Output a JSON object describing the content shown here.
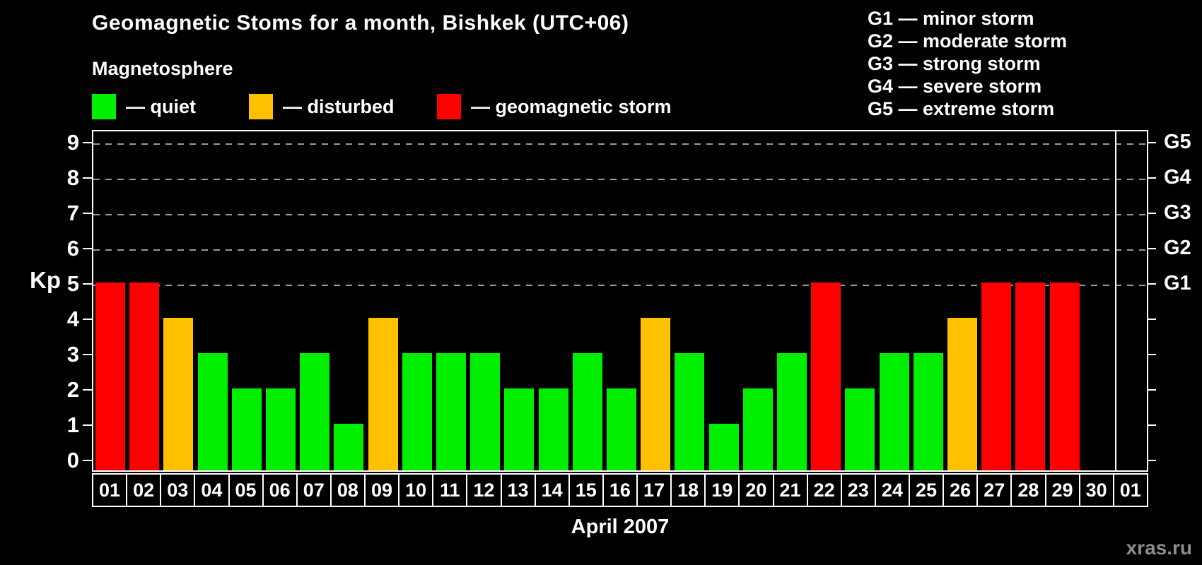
{
  "title": "Geomagnetic Stoms for a month, Bishkek (UTC+06)",
  "subtitle": "Magnetosphere",
  "legend": {
    "items": [
      {
        "name": "quiet",
        "label": "— quiet",
        "color": "#00EE00"
      },
      {
        "name": "disturbed",
        "label": "— disturbed",
        "color": "#FFC000"
      },
      {
        "name": "storm",
        "label": "— geomagnetic storm",
        "color": "#FF0000"
      }
    ]
  },
  "g_legend": {
    "lines": [
      "G1 — minor storm",
      "G2 — moderate storm",
      "G3 — strong storm",
      "G4 — severe storm",
      "G5 — extreme storm"
    ]
  },
  "watermark": "xras.ru",
  "colors": {
    "quiet": "#00EE00",
    "disturbed": "#FFC000",
    "storm": "#FF0000",
    "grid": "#9a9a9a",
    "axis": "#ffffff",
    "background": "#000000"
  },
  "chart_data": {
    "type": "bar",
    "title": "Geomagnetic Stoms for a month, Bishkek (UTC+06)",
    "xlabel": "April 2007",
    "ylabel": "Kp",
    "categories": [
      "01",
      "02",
      "03",
      "04",
      "05",
      "06",
      "07",
      "08",
      "09",
      "10",
      "11",
      "12",
      "13",
      "14",
      "15",
      "16",
      "17",
      "18",
      "19",
      "20",
      "21",
      "22",
      "23",
      "24",
      "25",
      "26",
      "27",
      "28",
      "29",
      "30",
      "01"
    ],
    "values": [
      5,
      5,
      4,
      3,
      2,
      2,
      3,
      1,
      4,
      3,
      3,
      3,
      2,
      2,
      3,
      2,
      4,
      3,
      1,
      2,
      3,
      5,
      2,
      3,
      3,
      4,
      5,
      5,
      5,
      0,
      0
    ],
    "statuses": [
      "storm",
      "storm",
      "disturbed",
      "quiet",
      "quiet",
      "quiet",
      "quiet",
      "quiet",
      "disturbed",
      "quiet",
      "quiet",
      "quiet",
      "quiet",
      "quiet",
      "quiet",
      "quiet",
      "disturbed",
      "quiet",
      "quiet",
      "quiet",
      "quiet",
      "storm",
      "quiet",
      "quiet",
      "quiet",
      "disturbed",
      "storm",
      "storm",
      "storm",
      "none",
      "none"
    ],
    "y_ticks": [
      0,
      1,
      2,
      3,
      4,
      5,
      6,
      7,
      8,
      9
    ],
    "right_axis_labels": [
      {
        "value": 5,
        "label": "G1"
      },
      {
        "value": 6,
        "label": "G2"
      },
      {
        "value": 7,
        "label": "G3"
      },
      {
        "value": 8,
        "label": "G4"
      },
      {
        "value": 9,
        "label": "G5"
      }
    ],
    "gridlines_at": [
      5,
      6,
      7,
      8,
      9
    ],
    "ylim": [
      0,
      9.3
    ],
    "grid": "dashed horizontal at G1–G5 levels",
    "legend_position": "top",
    "separator_before_index": 30,
    "note_last_slot": "first day of next month, no data"
  }
}
